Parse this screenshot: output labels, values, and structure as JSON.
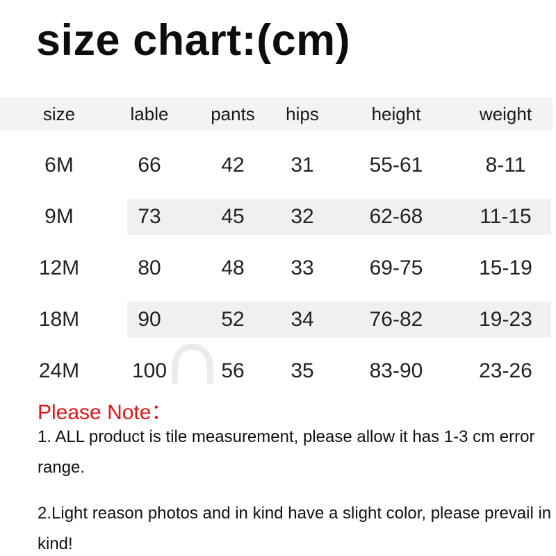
{
  "chart_data": {
    "type": "table",
    "title": "size chart:(cm)",
    "unit": "cm",
    "columns": [
      "size",
      "lable",
      "pants",
      "hips",
      "height",
      "weight"
    ],
    "rows": [
      [
        "6M",
        "66",
        "42",
        "31",
        "55-61",
        "8-11"
      ],
      [
        "9M",
        "73",
        "45",
        "32",
        "62-68",
        "11-15"
      ],
      [
        "12M",
        "80",
        "48",
        "33",
        "69-75",
        "15-19"
      ],
      [
        "18M",
        "90",
        "52",
        "34",
        "76-82",
        "19-23"
      ],
      [
        "24M",
        "100",
        "56",
        "35",
        "83-90",
        "23-26"
      ]
    ],
    "layout_hints": {
      "header_band": true,
      "shaded_row_indices": [
        1,
        3
      ],
      "grid_lines": false
    }
  },
  "note": {
    "heading": "Please Note：",
    "items": [
      "1. ALL product is tile measurement, please allow it has 1-3 cm error range.",
      "2.Light reason photos and in kind have a slight color, please prevail in kind!"
    ]
  },
  "colors": {
    "title_text": "#0d0d0d",
    "body_text": "#222222",
    "note_red": "#e11515",
    "header_band": "#f3f3f3",
    "row_band": "#f0f0f0"
  }
}
